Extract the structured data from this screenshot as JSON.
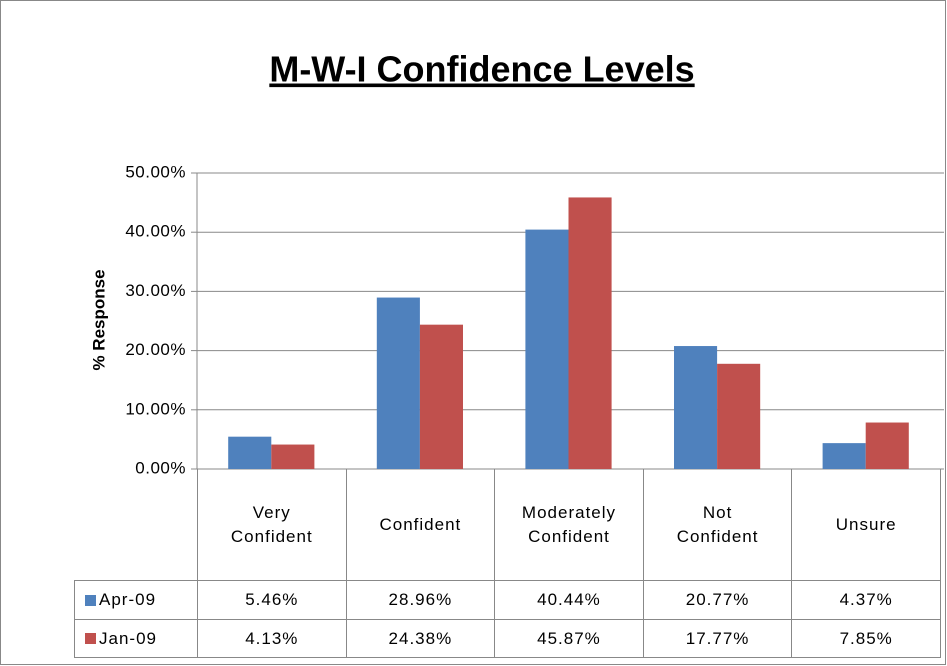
{
  "chart_data": {
    "type": "bar",
    "title": "M-W-I Confidence Levels",
    "y_label": "% Response",
    "categories": [
      "Very Confident",
      "Confident",
      "Moderately Confident",
      "Not Confident",
      "Unsure"
    ],
    "series": [
      {
        "name": "Apr-09",
        "color": "#4f81bd",
        "values": [
          5.46,
          28.96,
          40.44,
          20.77,
          4.37
        ],
        "value_labels": [
          "5.46%",
          "28.96%",
          "40.44%",
          "20.77%",
          "4.37%"
        ]
      },
      {
        "name": "Jan-09",
        "color": "#c0504d",
        "values": [
          4.13,
          24.38,
          45.87,
          17.77,
          7.85
        ],
        "value_labels": [
          "4.13%",
          "24.38%",
          "45.87%",
          "17.77%",
          "7.85%"
        ]
      }
    ],
    "ylim": [
      0,
      50
    ],
    "yticks": [
      {
        "value": 0,
        "label": "0.00%"
      },
      {
        "value": 10,
        "label": "10.00%"
      },
      {
        "value": 20,
        "label": "20.00%"
      },
      {
        "value": 30,
        "label": "30.00%"
      },
      {
        "value": 40,
        "label": "40.00%"
      },
      {
        "value": 50,
        "label": "50.00%"
      }
    ],
    "grid": true
  }
}
